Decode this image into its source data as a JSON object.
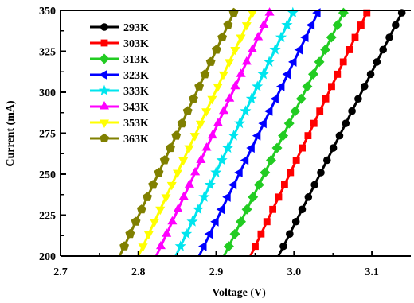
{
  "chart_data": {
    "type": "line",
    "xlabel": "Voltage (V)",
    "ylabel": "Current (mA)",
    "xlim": [
      2.7,
      3.15
    ],
    "ylim": [
      200,
      350
    ],
    "xticks": [
      2.7,
      2.8,
      2.9,
      3.0,
      3.1
    ],
    "xtick_labels": [
      "2.7",
      "2.8",
      "2.9",
      "3.0",
      "3.1"
    ],
    "yticks": [
      200,
      225,
      250,
      275,
      300,
      325,
      350
    ],
    "ytick_labels": [
      "200",
      "225",
      "250",
      "275",
      "300",
      "325",
      "350"
    ],
    "legend_position": "top-left",
    "grid": false,
    "series": [
      {
        "name": "293K",
        "color": "#000000",
        "marker": "circle",
        "v_at_200": 2.98,
        "v_at_350": 3.14
      },
      {
        "name": "303K",
        "color": "#ff0000",
        "marker": "square",
        "v_at_200": 2.944,
        "v_at_350": 3.095
      },
      {
        "name": "313K",
        "color": "#22cc22",
        "marker": "diamond",
        "v_at_200": 2.91,
        "v_at_350": 3.065
      },
      {
        "name": "323K",
        "color": "#0000ff",
        "marker": "triangle-left",
        "v_at_200": 2.878,
        "v_at_350": 3.032
      },
      {
        "name": "333K",
        "color": "#00e5ee",
        "marker": "star",
        "v_at_200": 2.848,
        "v_at_350": 3.0
      },
      {
        "name": "343K",
        "color": "#ff00ff",
        "marker": "triangle-up",
        "v_at_200": 2.823,
        "v_at_350": 2.97
      },
      {
        "name": "353K",
        "color": "#ffff00",
        "marker": "triangle-down",
        "v_at_200": 2.8,
        "v_at_350": 2.948
      },
      {
        "name": "363K",
        "color": "#808000",
        "marker": "pentagon",
        "v_at_200": 2.776,
        "v_at_350": 2.924
      }
    ]
  }
}
